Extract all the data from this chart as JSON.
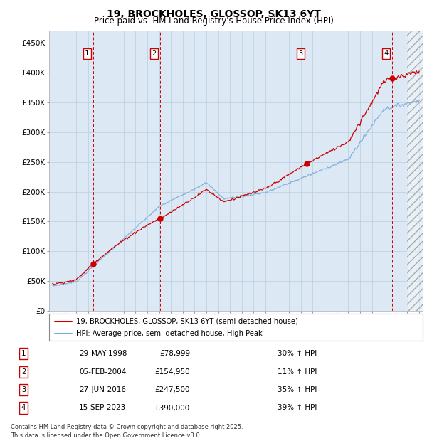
{
  "title": "19, BROCKHOLES, GLOSSOP, SK13 6YT",
  "subtitle": "Price paid vs. HM Land Registry's House Price Index (HPI)",
  "ylabel_values": [
    "£0",
    "£50K",
    "£100K",
    "£150K",
    "£200K",
    "£250K",
    "£300K",
    "£350K",
    "£400K",
    "£450K"
  ],
  "ylim": [
    0,
    470000
  ],
  "yticks": [
    0,
    50000,
    100000,
    150000,
    200000,
    250000,
    300000,
    350000,
    400000,
    450000
  ],
  "xlim_start": 1994.7,
  "xlim_end": 2026.3,
  "sale_dates": [
    1998.41,
    2004.09,
    2016.49,
    2023.71
  ],
  "sale_prices": [
    78999,
    154950,
    247500,
    390000
  ],
  "sale_labels": [
    "1",
    "2",
    "3",
    "4"
  ],
  "legend_line1": "19, BROCKHOLES, GLOSSOP, SK13 6YT (semi-detached house)",
  "legend_line2": "HPI: Average price, semi-detached house, High Peak",
  "table_rows": [
    [
      "1",
      "29-MAY-1998",
      "£78,999",
      "30% ↑ HPI"
    ],
    [
      "2",
      "05-FEB-2004",
      "£154,950",
      "11% ↑ HPI"
    ],
    [
      "3",
      "27-JUN-2016",
      "£247,500",
      "35% ↑ HPI"
    ],
    [
      "4",
      "15-SEP-2023",
      "£390,000",
      "39% ↑ HPI"
    ]
  ],
  "footer": "Contains HM Land Registry data © Crown copyright and database right 2025.\nThis data is licensed under the Open Government Licence v3.0.",
  "price_line_color": "#cc0000",
  "hpi_line_color": "#7aabda",
  "plot_bg_color": "#dce9f5",
  "grid_color": "#b8cfe0",
  "vline_color": "#cc0000",
  "hatch_region_start": 2025.0
}
